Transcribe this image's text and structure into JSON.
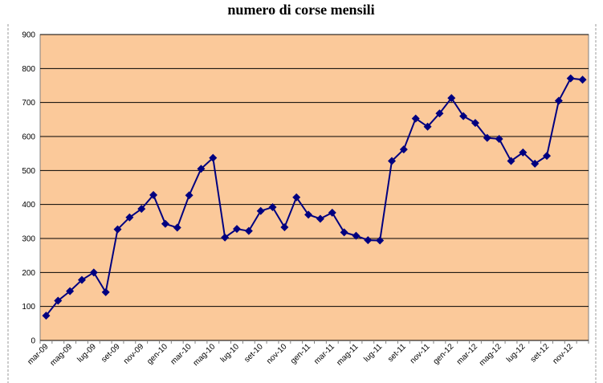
{
  "chart_data": {
    "type": "line",
    "title": "numero di corse mensili",
    "categories": [
      "mar-09",
      null,
      "mag-09",
      null,
      "lug-09",
      null,
      "set-09",
      null,
      "nov-09",
      null,
      "gen-10",
      null,
      "mar-10",
      null,
      "mag-10",
      null,
      "lug-10",
      null,
      "set-10",
      null,
      "nov-10",
      null,
      "gen-11",
      null,
      "mar-11",
      null,
      "mag-11",
      null,
      "lug-11",
      null,
      "set-11",
      null,
      "nov-11",
      null,
      "gen-12",
      null,
      "mar-12",
      null,
      "mag-12",
      null,
      "lug-12",
      null,
      "set-12",
      null,
      "nov-12",
      null
    ],
    "series": [
      {
        "color": "#000080",
        "values": [
          73,
          117,
          145,
          178,
          200,
          142,
          327,
          362,
          387,
          428,
          343,
          332,
          427,
          505,
          537,
          303,
          328,
          322,
          381,
          392,
          333,
          421,
          370,
          358,
          376,
          318,
          308,
          295,
          294,
          528,
          562,
          653,
          629,
          668,
          713,
          660,
          640,
          596,
          593,
          528,
          553,
          520,
          543,
          705,
          771,
          767
        ]
      }
    ],
    "ylim": [
      0,
      900
    ],
    "yticks": [
      0,
      100,
      200,
      300,
      400,
      500,
      600,
      700,
      800,
      900
    ],
    "grid": true
  }
}
